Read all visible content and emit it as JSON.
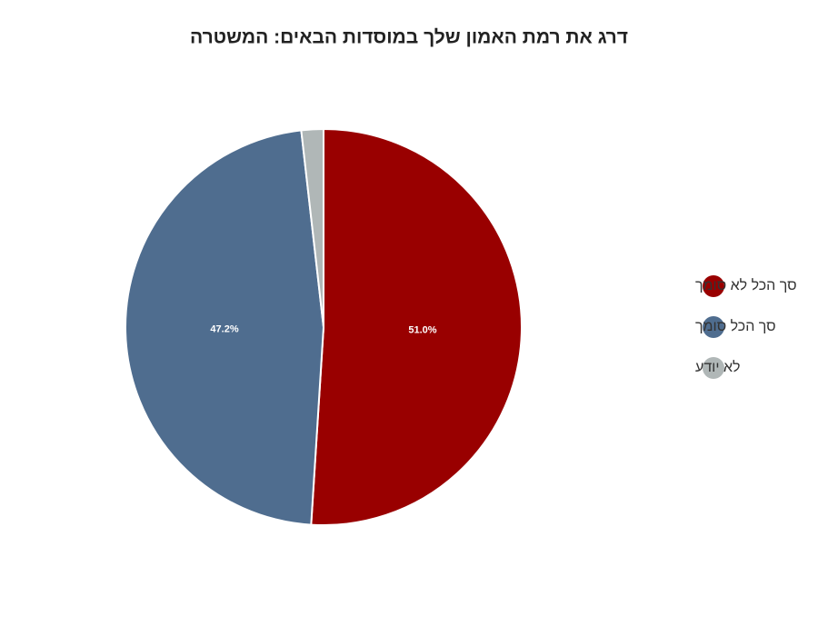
{
  "chart_data": {
    "type": "pie",
    "title": "דרג את רמת האמון שלך במוסדות הבאים: המשטרה",
    "categories": [
      "סך הכל לא סומך",
      "סך הכל סומך",
      "לא יודע"
    ],
    "values": [
      51.0,
      47.2,
      1.8
    ],
    "value_labels": [
      "51.0%",
      "47.2%",
      null
    ],
    "colors": [
      "#990000",
      "#4f6d8f",
      "#b0b7b7"
    ],
    "legend": "right"
  }
}
